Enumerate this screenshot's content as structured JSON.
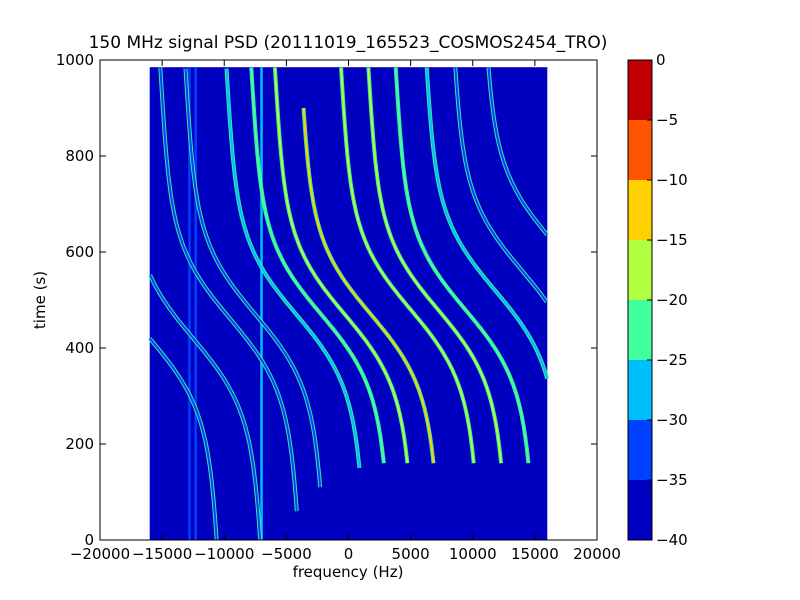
{
  "chart_data": {
    "type": "heatmap",
    "title": "150 MHz signal PSD (20111019_165523_COSMOS2454_TRO)",
    "xlabel": "frequency (Hz)",
    "ylabel": "time (s)",
    "xlim": [
      -20000,
      20000
    ],
    "ylim": [
      0,
      1000
    ],
    "xticks": [
      -20000,
      -15000,
      -10000,
      -5000,
      0,
      5000,
      10000,
      15000,
      20000
    ],
    "xtick_labels": [
      "−20000",
      "−15000",
      "−10000",
      "−5000",
      "0",
      "5000",
      "10000",
      "15000",
      "20000"
    ],
    "yticks": [
      0,
      200,
      400,
      600,
      800,
      1000
    ],
    "ytick_labels": [
      "0",
      "200",
      "400",
      "600",
      "800",
      "1000"
    ],
    "data_extent": {
      "x": [
        -16000,
        16000
      ],
      "y": [
        0,
        985
      ]
    },
    "colorbar": {
      "levels": [
        -40,
        -35,
        -30,
        -25,
        -20,
        -15,
        -10,
        -5,
        0
      ],
      "tick_labels": [
        "−40",
        "−35",
        "−30",
        "−25",
        "−20",
        "−15",
        "−10",
        "−5",
        "0"
      ],
      "colors": [
        "#0000c0",
        "#0040ff",
        "#00bfff",
        "#40ff9f",
        "#b0ff40",
        "#ffd000",
        "#ff5500",
        "#c00000"
      ]
    },
    "background_level": -35,
    "vertical_lines": [
      {
        "x": -12800,
        "level": -30
      },
      {
        "x": -12300,
        "level": -30
      },
      {
        "x": -7000,
        "level": -25
      }
    ],
    "doppler_tracks": [
      {
        "x_center": -16000,
        "t_center": 420,
        "amplitude": 1,
        "t_start": 0,
        "t_end": 700,
        "level": -30
      },
      {
        "x_center": -12500,
        "t_center": 420,
        "amplitude": 1,
        "t_start": 0,
        "t_end": 700,
        "level": -30
      },
      {
        "x_center": -9500,
        "t_center": 460,
        "amplitude": 1,
        "t_start": 60,
        "t_end": 985,
        "level": -30
      },
      {
        "x_center": -7500,
        "t_center": 470,
        "amplitude": 1,
        "t_start": 110,
        "t_end": 985,
        "level": -30
      },
      {
        "x_center": -4200,
        "t_center": 470,
        "amplitude": 1,
        "t_start": 150,
        "t_end": 985,
        "level": -25
      },
      {
        "x_center": -2200,
        "t_center": 470,
        "amplitude": 1,
        "t_start": 160,
        "t_end": 985,
        "level": -20
      },
      {
        "x_center": -300,
        "t_center": 470,
        "amplitude": 1,
        "t_start": 160,
        "t_end": 985,
        "level": -15
      },
      {
        "x_center": 1800,
        "t_center": 470,
        "amplitude": 1,
        "t_start": 160,
        "t_end": 900,
        "level": -10
      },
      {
        "x_center": 5000,
        "t_center": 480,
        "amplitude": 1,
        "t_start": 160,
        "t_end": 985,
        "level": -15
      },
      {
        "x_center": 7200,
        "t_center": 480,
        "amplitude": 1,
        "t_start": 160,
        "t_end": 985,
        "level": -15
      },
      {
        "x_center": 9400,
        "t_center": 480,
        "amplitude": 1,
        "t_start": 160,
        "t_end": 985,
        "level": -20
      },
      {
        "x_center": 11800,
        "t_center": 520,
        "amplitude": 1,
        "t_start": 160,
        "t_end": 985,
        "level": -25
      },
      {
        "x_center": 14000,
        "t_center": 560,
        "amplitude": 1,
        "t_start": 160,
        "t_end": 985,
        "level": -30
      },
      {
        "x_center": 16500,
        "t_center": 620,
        "amplitude": 1,
        "t_start": 400,
        "t_end": 985,
        "level": -30
      }
    ]
  }
}
